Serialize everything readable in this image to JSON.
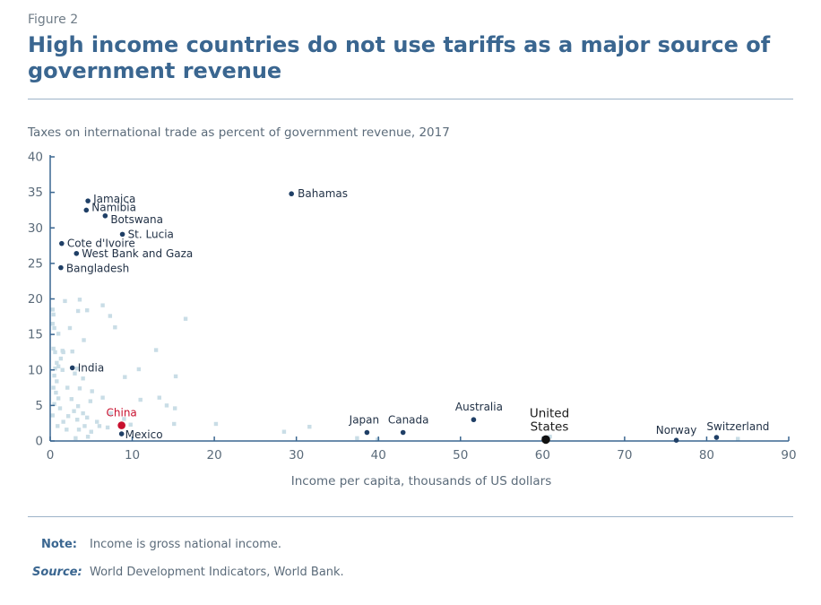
{
  "figure_label": "Figure 2",
  "title": "High income countries do not use tariffs as a major source of government revenue",
  "subtitle": "Taxes on international trade as percent of government revenue, 2017",
  "note_label": "Note:",
  "note_text": "Income is gross national income.",
  "source_label": "Source:",
  "source_text": "World Development Indicators, World Bank.",
  "colors": {
    "title": "#3a6690",
    "axis": "#3a6690",
    "labeled_point": "#1f3f66",
    "background_point": "#c9dde6",
    "highlight_china": "#c8102e",
    "highlight_us": "#111111"
  },
  "chart_data": {
    "type": "scatter",
    "xlabel": "Income per capita, thousands of US dollars",
    "ylabel": "Taxes on international trade as percent of government revenue, 2017",
    "xlim": [
      0,
      90
    ],
    "ylim": [
      0,
      40
    ],
    "xticks": [
      0,
      10,
      20,
      30,
      40,
      50,
      60,
      70,
      80,
      90
    ],
    "yticks": [
      0,
      5,
      10,
      15,
      20,
      25,
      30,
      35,
      40
    ],
    "grid": false,
    "labeled_points": [
      {
        "label": "Bahamas",
        "x": 29.4,
        "y": 34.8
      },
      {
        "label": "Jamaica",
        "x": 4.6,
        "y": 33.8
      },
      {
        "label": "Namibia",
        "x": 4.4,
        "y": 32.5
      },
      {
        "label": "Botswana",
        "x": 6.7,
        "y": 31.7
      },
      {
        "label": "St. Lucia",
        "x": 8.8,
        "y": 29.1
      },
      {
        "label": "Cote d'Ivoire",
        "x": 1.4,
        "y": 27.8
      },
      {
        "label": "West Bank and Gaza",
        "x": 3.2,
        "y": 26.4
      },
      {
        "label": "Bangladesh",
        "x": 1.3,
        "y": 24.4
      },
      {
        "label": "India",
        "x": 2.7,
        "y": 10.3
      },
      {
        "label": "China",
        "x": 8.7,
        "y": 2.2,
        "highlight": "china"
      },
      {
        "label": "Mexico",
        "x": 8.7,
        "y": 1.0
      },
      {
        "label": "Japan",
        "x": 38.6,
        "y": 1.2
      },
      {
        "label": "Canada",
        "x": 43.0,
        "y": 1.2
      },
      {
        "label": "Australia",
        "x": 51.6,
        "y": 3.0
      },
      {
        "label": "United States",
        "x": 60.4,
        "y": 0.2,
        "highlight": "us"
      },
      {
        "label": "Norway",
        "x": 76.3,
        "y": 0.1
      },
      {
        "label": "Switzerland",
        "x": 81.2,
        "y": 0.5
      }
    ],
    "other_points": [
      [
        0.3,
        18.5
      ],
      [
        0.4,
        17.8
      ],
      [
        0.3,
        16.5
      ],
      [
        0.5,
        15.9
      ],
      [
        0.4,
        13.0
      ],
      [
        0.6,
        12.5
      ],
      [
        0.8,
        11.0
      ],
      [
        1.0,
        10.5
      ],
      [
        1.3,
        11.6
      ],
      [
        1.5,
        10.0
      ],
      [
        0.6,
        10.2
      ],
      [
        0.5,
        9.2
      ],
      [
        0.8,
        8.4
      ],
      [
        0.4,
        7.5
      ],
      [
        0.7,
        6.8
      ],
      [
        1.0,
        6.0
      ],
      [
        0.5,
        5.2
      ],
      [
        1.2,
        4.6
      ],
      [
        0.3,
        3.6
      ],
      [
        1.6,
        2.7
      ],
      [
        2.0,
        1.6
      ],
      [
        1.5,
        12.7
      ],
      [
        1.8,
        19.7
      ],
      [
        3.6,
        19.9
      ],
      [
        4.5,
        18.4
      ],
      [
        3.4,
        18.3
      ],
      [
        6.4,
        19.1
      ],
      [
        7.3,
        17.6
      ],
      [
        7.9,
        16.0
      ],
      [
        2.4,
        15.9
      ],
      [
        1.0,
        15.1
      ],
      [
        4.1,
        14.2
      ],
      [
        2.7,
        12.6
      ],
      [
        1.6,
        12.5
      ],
      [
        3.3,
        10.2
      ],
      [
        3.0,
        9.5
      ],
      [
        4.0,
        8.8
      ],
      [
        2.1,
        7.5
      ],
      [
        3.6,
        7.4
      ],
      [
        5.1,
        7.0
      ],
      [
        6.4,
        6.1
      ],
      [
        2.6,
        5.9
      ],
      [
        3.4,
        4.9
      ],
      [
        4.9,
        5.6
      ],
      [
        4.0,
        3.9
      ],
      [
        2.2,
        3.5
      ],
      [
        3.3,
        3.0
      ],
      [
        5.7,
        2.7
      ],
      [
        4.2,
        2.1
      ],
      [
        3.5,
        1.6
      ],
      [
        5.0,
        1.3
      ],
      [
        4.6,
        0.6
      ],
      [
        3.1,
        0.4
      ],
      [
        6.0,
        2.1
      ],
      [
        7.0,
        1.9
      ],
      [
        7.4,
        3.9
      ],
      [
        9.0,
        3.1
      ],
      [
        9.8,
        2.3
      ],
      [
        9.1,
        9.0
      ],
      [
        10.8,
        10.1
      ],
      [
        11.0,
        5.8
      ],
      [
        12.9,
        12.8
      ],
      [
        13.3,
        6.1
      ],
      [
        14.2,
        5.0
      ],
      [
        15.3,
        9.1
      ],
      [
        15.2,
        4.6
      ],
      [
        16.5,
        17.2
      ],
      [
        15.1,
        2.4
      ],
      [
        20.2,
        2.4
      ],
      [
        28.5,
        1.3
      ],
      [
        31.6,
        2.0
      ],
      [
        37.4,
        0.4
      ],
      [
        39.9,
        0.2
      ],
      [
        60.9,
        0.6
      ],
      [
        83.8,
        0.3
      ],
      [
        0.9,
        2.1
      ],
      [
        2.9,
        4.2
      ],
      [
        4.5,
        3.3
      ]
    ]
  }
}
